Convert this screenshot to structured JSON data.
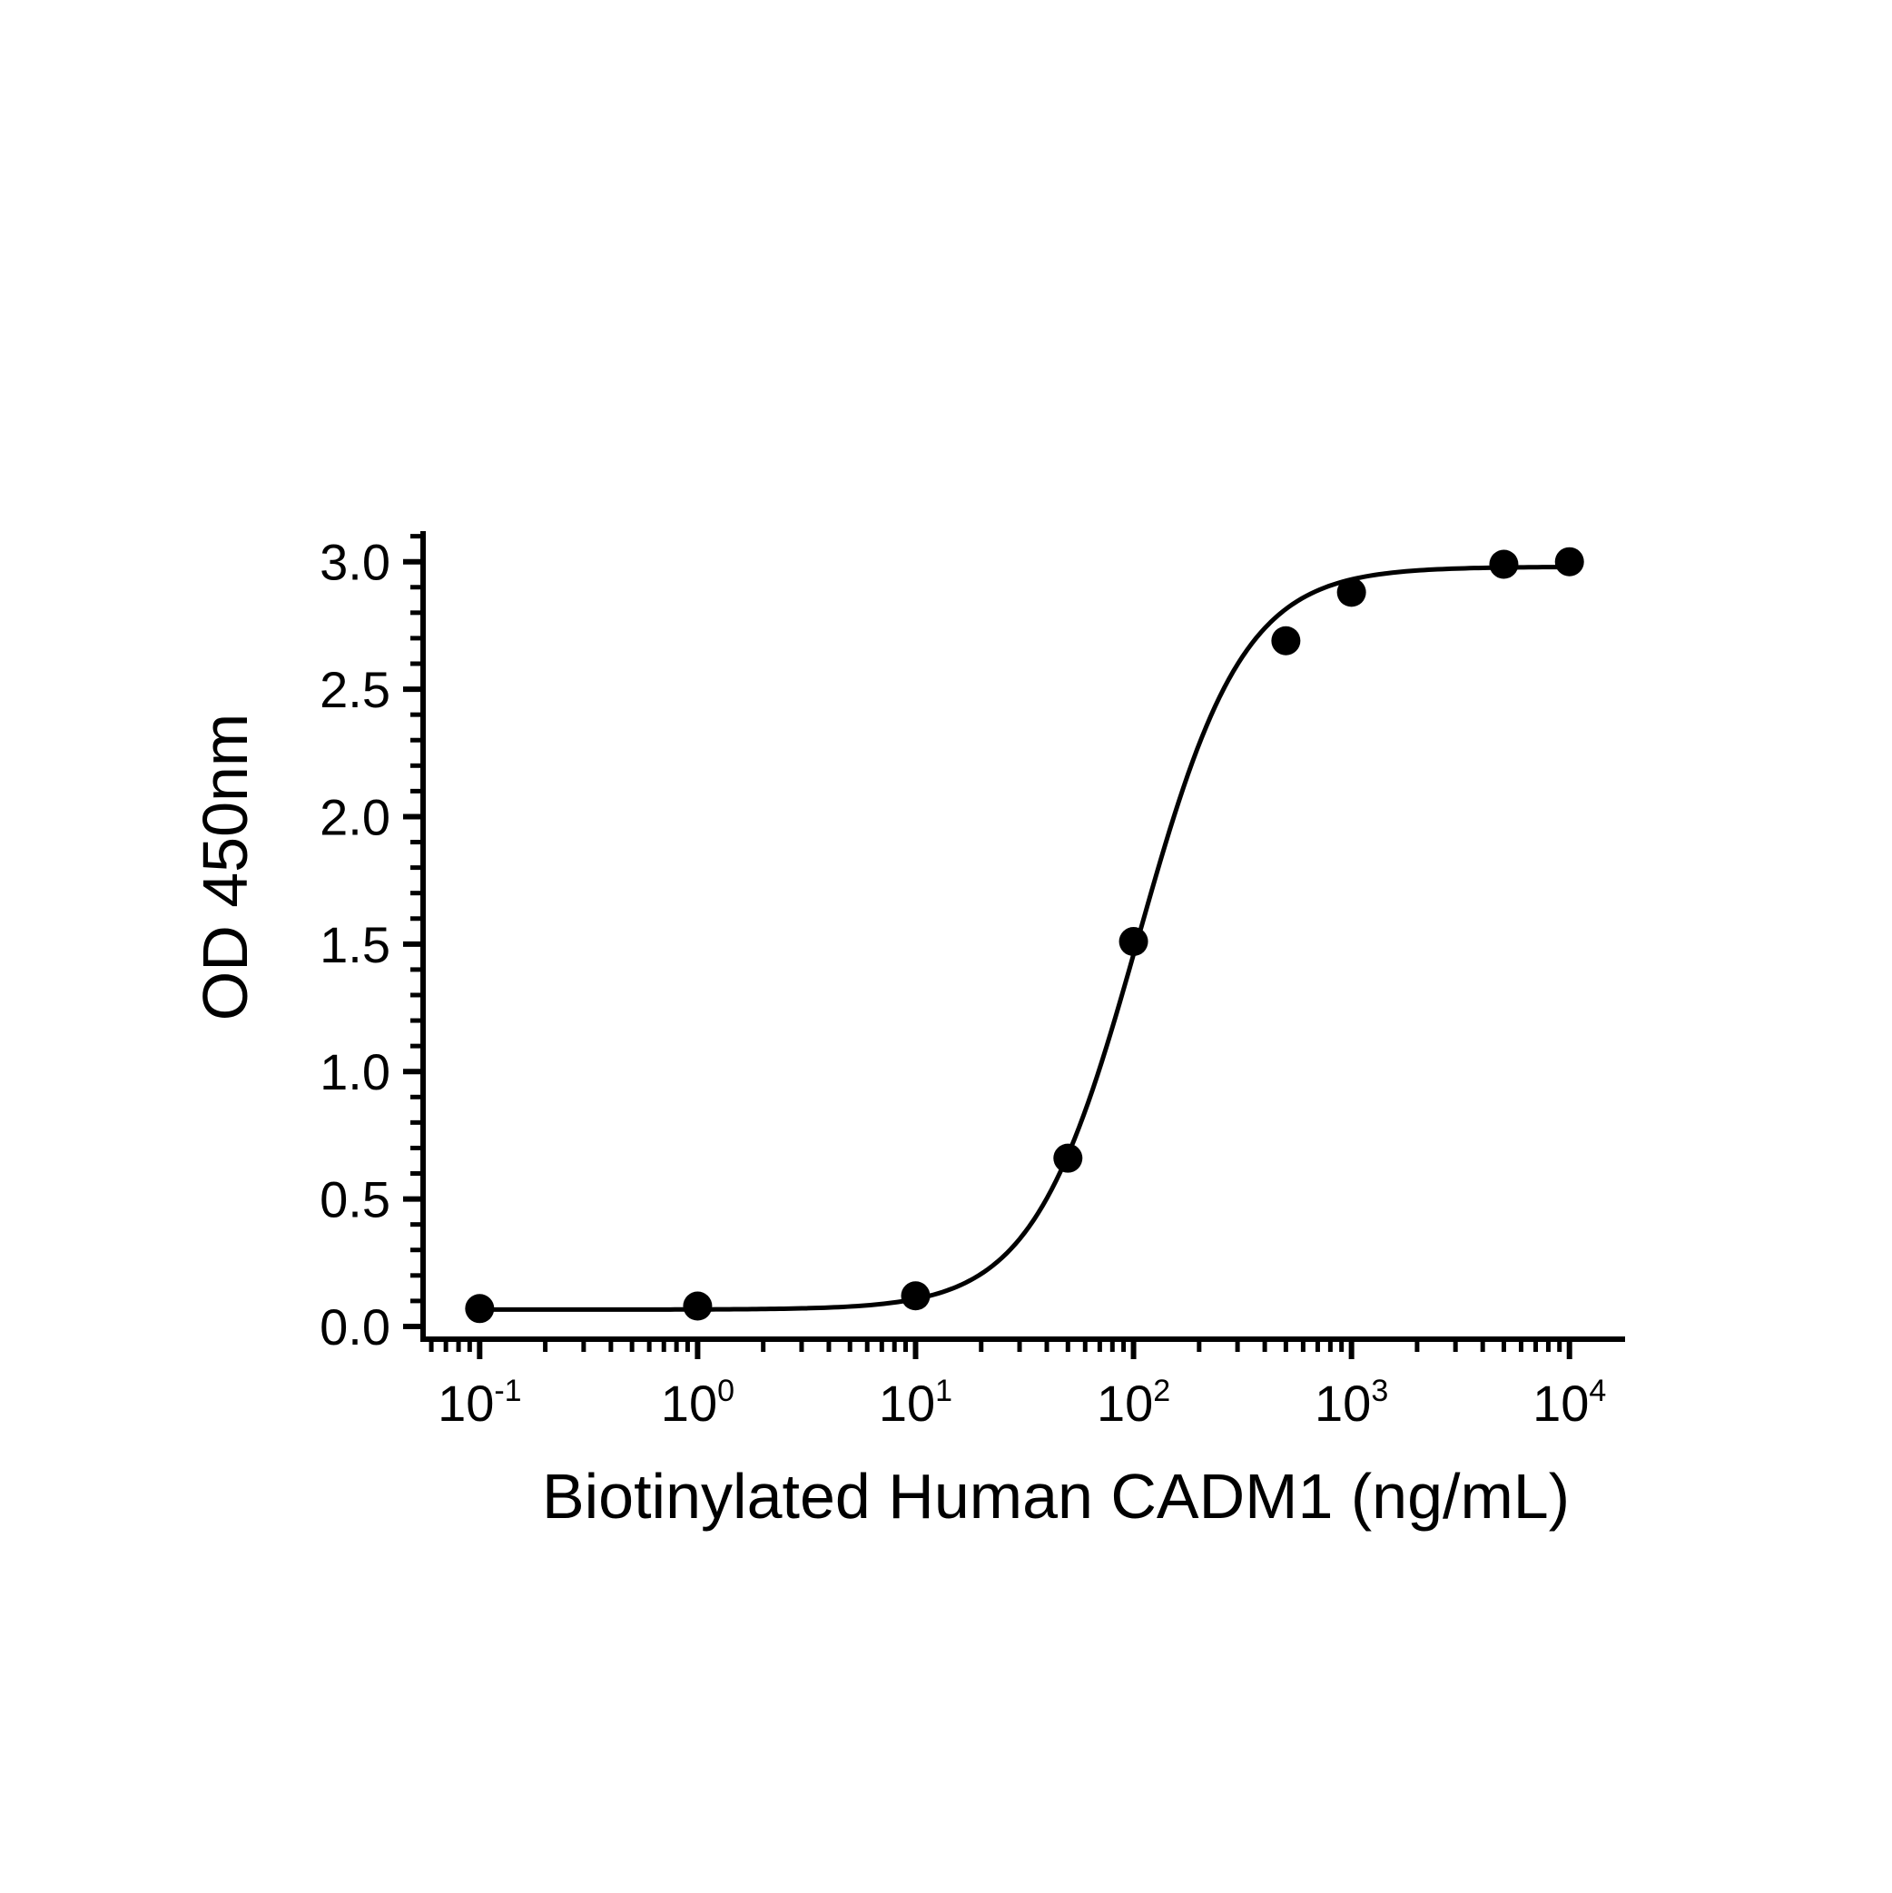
{
  "chart_data": {
    "type": "scatter",
    "title": "",
    "xlabel": "Biotinylated Human CADM1 (ng/mL)",
    "ylabel": "OD 450nm",
    "x_scale": "log",
    "xlim": [
      0.055,
      18000
    ],
    "ylim": [
      -0.05,
      3.12
    ],
    "grid": false,
    "legend": "none",
    "x_ticks": [
      {
        "base": "10",
        "exp": "-1",
        "value": 0.1
      },
      {
        "base": "10",
        "exp": "0",
        "value": 1
      },
      {
        "base": "10",
        "exp": "1",
        "value": 10
      },
      {
        "base": "10",
        "exp": "2",
        "value": 100
      },
      {
        "base": "10",
        "exp": "3",
        "value": 1000
      },
      {
        "base": "10",
        "exp": "4",
        "value": 10000
      }
    ],
    "y_ticks": [
      {
        "label": "0.0",
        "value": 0.0
      },
      {
        "label": "0.5",
        "value": 0.5
      },
      {
        "label": "1.0",
        "value": 1.0
      },
      {
        "label": "1.5",
        "value": 1.5
      },
      {
        "label": "2.0",
        "value": 2.0
      },
      {
        "label": "2.5",
        "value": 2.5
      },
      {
        "label": "3.0",
        "value": 3.0
      }
    ],
    "series": [
      {
        "points": [
          {
            "x": 0.1,
            "y": 0.07
          },
          {
            "x": 1,
            "y": 0.08
          },
          {
            "x": 10,
            "y": 0.12
          },
          {
            "x": 50,
            "y": 0.66
          },
          {
            "x": 100,
            "y": 1.51
          },
          {
            "x": 500,
            "y": 2.69
          },
          {
            "x": 1000,
            "y": 2.88
          },
          {
            "x": 5000,
            "y": 2.99
          },
          {
            "x": 10000,
            "y": 3.0
          }
        ],
        "fit": {
          "model": "4PL",
          "bottom": 0.066,
          "top": 2.98,
          "ec50": 105,
          "hill": 1.8
        }
      }
    ],
    "colors": {
      "marker": "#000000",
      "line": "#000000",
      "axis": "#000000"
    }
  }
}
